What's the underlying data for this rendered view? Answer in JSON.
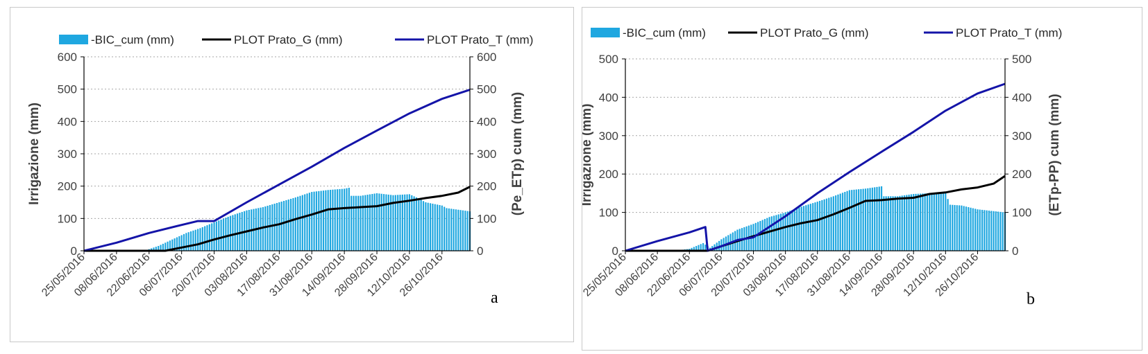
{
  "chart_data": [
    {
      "type": "bar",
      "panel_letter": "a",
      "ylabel": "Irrigazione (mm)",
      "y2label": "(Pe_ETp) cum (mm)",
      "ylim": [
        0,
        600
      ],
      "y2lim": [
        0,
        600
      ],
      "yticks": [
        "0",
        "100",
        "200",
        "300",
        "400",
        "500",
        "600"
      ],
      "y2ticks": [
        "0",
        "100",
        "200",
        "300",
        "400",
        "500",
        "600"
      ],
      "xlim": [
        "25/05/2016",
        "07/11/2016"
      ],
      "xticks": [
        "25/05/2016",
        "08/06/2016",
        "22/06/2016",
        "06/07/2016",
        "20/07/2016",
        "03/08/2016",
        "17/08/2016",
        "31/08/2016",
        "14/09/2016",
        "28/09/2016",
        "12/10/2016",
        "26/10/2016"
      ],
      "grid": "horizontal dotted",
      "legend_position": "top",
      "legend": [
        "-BIC_cum (mm)",
        "PLOT Prato_G (mm)",
        "PLOT Prato_T (mm)"
      ],
      "bars": {
        "name": "-BIC_cum (mm)",
        "color": "#1fa7e0",
        "x": [
          "20/06/2016",
          "26/06/2016",
          "02/07/2016",
          "08/07/2016",
          "14/07/2016",
          "20/07/2016",
          "27/07/2016",
          "03/08/2016",
          "10/08/2016",
          "17/08/2016",
          "24/08/2016",
          "31/08/2016",
          "07/09/2016",
          "14/09/2016",
          "16/09/2016",
          "17/09/2016",
          "21/09/2016",
          "28/09/2016",
          "05/10/2016",
          "12/10/2016",
          "15/10/2016",
          "19/10/2016",
          "26/10/2016",
          "28/10/2016",
          "07/11/2016"
        ],
        "values": [
          0,
          15,
          35,
          55,
          70,
          88,
          108,
          125,
          135,
          150,
          165,
          182,
          188,
          192,
          195,
          170,
          170,
          178,
          172,
          175,
          165,
          150,
          140,
          132,
          122
        ]
      },
      "series": [
        {
          "name": "PLOT Prato_G (mm)",
          "color": "#000000",
          "x": [
            "25/05/2016",
            "29/06/2016",
            "06/07/2016",
            "13/07/2016",
            "20/07/2016",
            "27/07/2016",
            "03/08/2016",
            "10/08/2016",
            "17/08/2016",
            "24/08/2016",
            "31/08/2016",
            "07/09/2016",
            "14/09/2016",
            "21/09/2016",
            "28/09/2016",
            "05/10/2016",
            "12/10/2016",
            "19/10/2016",
            "26/10/2016",
            "02/11/2016",
            "07/11/2016"
          ],
          "values": [
            0,
            0,
            10,
            20,
            35,
            48,
            60,
            72,
            82,
            98,
            112,
            128,
            132,
            135,
            138,
            148,
            155,
            163,
            170,
            180,
            198
          ]
        },
        {
          "name": "PLOT Prato_T (mm)",
          "color": "#1414a8",
          "x": [
            "25/05/2016",
            "08/06/2016",
            "22/06/2016",
            "06/07/2016",
            "13/07/2016",
            "20/07/2016",
            "03/08/2016",
            "17/08/2016",
            "31/08/2016",
            "14/09/2016",
            "28/09/2016",
            "12/10/2016",
            "26/10/2016",
            "07/11/2016"
          ],
          "values": [
            0,
            25,
            55,
            80,
            92,
            92,
            150,
            205,
            260,
            318,
            372,
            425,
            470,
            498
          ]
        }
      ]
    },
    {
      "type": "bar",
      "panel_letter": "b",
      "ylabel": "Irrigazione (mm)",
      "y2label": "(ETp-PP) cum (mm)",
      "ylim": [
        0,
        500
      ],
      "y2lim": [
        0,
        500
      ],
      "yticks": [
        "0",
        "100",
        "200",
        "300",
        "400",
        "500"
      ],
      "y2ticks": [
        "0",
        "100",
        "200",
        "300",
        "400",
        "500"
      ],
      "xlim": [
        "25/05/2016",
        "07/11/2016"
      ],
      "xticks": [
        "25/05/2016",
        "08/06/2016",
        "22/06/2016",
        "06/07/2016",
        "20/07/2016",
        "03/08/2016",
        "17/08/2016",
        "31/08/2016",
        "14/09/2016",
        "28/09/2016",
        "12/10/2016",
        "26/10/2016"
      ],
      "grid": "horizontal dotted",
      "legend_position": "top",
      "legend": [
        "-BIC_cum (mm)",
        "PLOT Prato_G (mm)",
        "PLOT Prato_T (mm)"
      ],
      "bars": {
        "name": "-BIC_cum (mm)",
        "color": "#1fa7e0",
        "x": [
          "15/06/2016",
          "22/06/2016",
          "28/06/2016",
          "01/07/2016",
          "06/07/2016",
          "13/07/2016",
          "20/07/2016",
          "27/07/2016",
          "03/08/2016",
          "10/08/2016",
          "17/08/2016",
          "24/08/2016",
          "31/08/2016",
          "07/09/2016",
          "14/09/2016",
          "15/09/2016",
          "21/09/2016",
          "28/09/2016",
          "05/10/2016",
          "12/10/2016",
          "14/10/2016",
          "19/10/2016",
          "26/10/2016",
          "07/11/2016"
        ],
        "values": [
          0,
          5,
          20,
          8,
          30,
          55,
          70,
          88,
          100,
          115,
          128,
          142,
          158,
          162,
          168,
          142,
          142,
          148,
          150,
          150,
          120,
          118,
          108,
          100
        ]
      },
      "series": [
        {
          "name": "PLOT Prato_G (mm)",
          "color": "#000000",
          "x": [
            "25/05/2016",
            "30/06/2016",
            "06/07/2016",
            "13/07/2016",
            "20/07/2016",
            "27/07/2016",
            "03/08/2016",
            "10/08/2016",
            "17/08/2016",
            "24/08/2016",
            "31/08/2016",
            "07/09/2016",
            "14/09/2016",
            "21/09/2016",
            "28/09/2016",
            "05/10/2016",
            "12/10/2016",
            "19/10/2016",
            "26/10/2016",
            "02/11/2016",
            "07/11/2016"
          ],
          "values": [
            0,
            0,
            12,
            25,
            38,
            50,
            62,
            72,
            80,
            95,
            112,
            130,
            132,
            136,
            138,
            148,
            152,
            160,
            165,
            175,
            195
          ]
        },
        {
          "name": "PLOT Prato_T (mm)",
          "color": "#1414a8",
          "x": [
            "25/05/2016",
            "08/06/2016",
            "22/06/2016",
            "29/06/2016",
            "30/06/2016",
            "06/07/2016",
            "13/07/2016",
            "20/07/2016",
            "03/08/2016",
            "17/08/2016",
            "31/08/2016",
            "14/09/2016",
            "28/09/2016",
            "12/10/2016",
            "26/10/2016",
            "07/11/2016"
          ],
          "values": [
            0,
            25,
            48,
            62,
            0,
            12,
            28,
            35,
            90,
            150,
            205,
            258,
            310,
            365,
            410,
            435
          ]
        }
      ]
    }
  ]
}
